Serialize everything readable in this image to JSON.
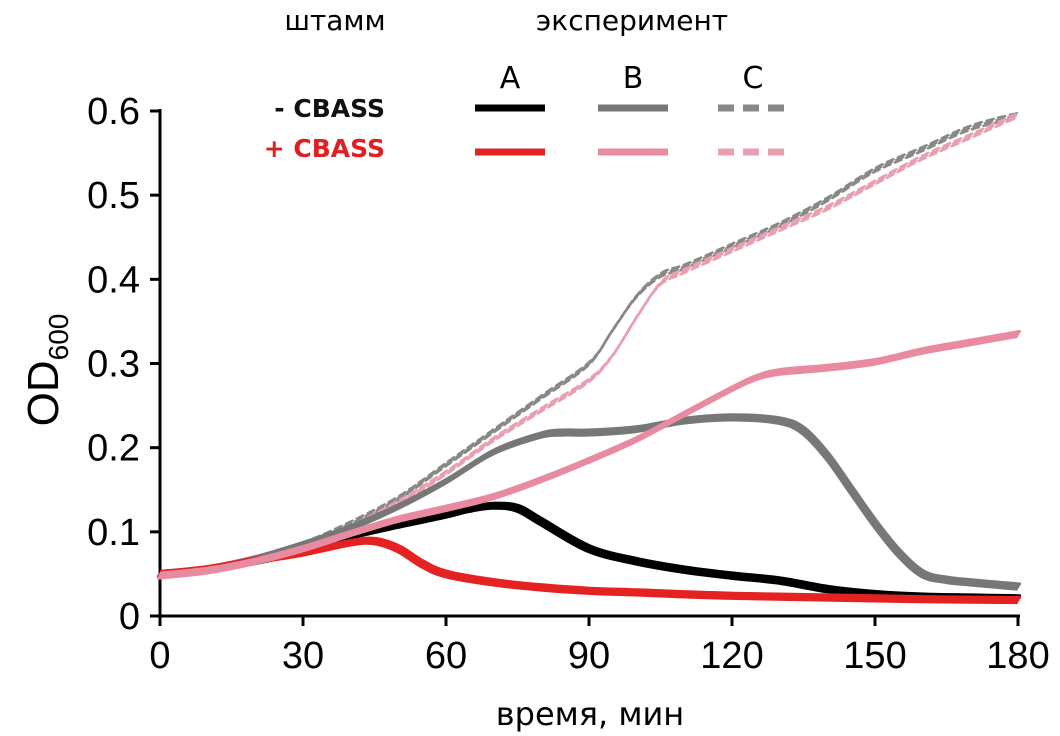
{
  "chart_data": {
    "type": "line",
    "ylabel_main": "OD",
    "ylabel_sub": "600",
    "xlabel": "время, мин",
    "xlim": [
      0,
      180
    ],
    "ylim": [
      0,
      0.6
    ],
    "xticks": [
      0,
      30,
      60,
      90,
      120,
      150,
      180
    ],
    "yticks": [
      0,
      0.1,
      0.2,
      0.3,
      0.4,
      0.5,
      0.6
    ],
    "xtick_labels": [
      "0",
      "30",
      "60",
      "90",
      "120",
      "150",
      "180"
    ],
    "ytick_labels": [
      "0",
      "0.1",
      "0.2",
      "0.3",
      "0.4",
      "0.5",
      "0.6"
    ],
    "legend": {
      "strain_header": "штамм",
      "experiment_header": "эксперимент",
      "columns": [
        "A",
        "B",
        "C"
      ],
      "rows": [
        {
          "label": "- CBASS",
          "color": "#111111"
        },
        {
          "label": "+ CBASS",
          "color": "#e02020"
        }
      ]
    },
    "series": [
      {
        "strain": "- CBASS",
        "experiment": "A",
        "color": "#000000",
        "style": "solid",
        "x": [
          0,
          10,
          20,
          30,
          40,
          50,
          60,
          65,
          70,
          75,
          80,
          90,
          100,
          110,
          120,
          130,
          140,
          150,
          160,
          170,
          180
        ],
        "y": [
          0.05,
          0.055,
          0.065,
          0.078,
          0.095,
          0.108,
          0.12,
          0.127,
          0.131,
          0.128,
          0.112,
          0.08,
          0.065,
          0.055,
          0.048,
          0.042,
          0.032,
          0.026,
          0.023,
          0.022,
          0.021
        ]
      },
      {
        "strain": "- CBASS",
        "experiment": "B",
        "color": "#777777",
        "style": "solid",
        "x": [
          0,
          10,
          20,
          30,
          40,
          50,
          60,
          70,
          80,
          85,
          90,
          100,
          110,
          120,
          130,
          135,
          140,
          145,
          150,
          155,
          160,
          165,
          170,
          180
        ],
        "y": [
          0.05,
          0.056,
          0.068,
          0.085,
          0.105,
          0.13,
          0.16,
          0.195,
          0.215,
          0.218,
          0.218,
          0.222,
          0.232,
          0.236,
          0.232,
          0.22,
          0.19,
          0.15,
          0.11,
          0.075,
          0.05,
          0.043,
          0.04,
          0.035
        ]
      },
      {
        "strain": "- CBASS",
        "experiment": "C",
        "color": "#888888",
        "style": "dashed",
        "x": [
          0,
          10,
          20,
          30,
          40,
          50,
          60,
          70,
          80,
          90,
          95,
          100,
          105,
          110,
          120,
          130,
          140,
          150,
          160,
          170,
          180
        ],
        "y": [
          0.05,
          0.055,
          0.068,
          0.085,
          0.11,
          0.14,
          0.18,
          0.22,
          0.26,
          0.3,
          0.34,
          0.38,
          0.405,
          0.415,
          0.44,
          0.465,
          0.495,
          0.53,
          0.555,
          0.58,
          0.595
        ]
      },
      {
        "strain": "+ CBASS",
        "experiment": "A",
        "color": "#e52222",
        "style": "solid",
        "x": [
          0,
          10,
          20,
          30,
          40,
          45,
          50,
          55,
          60,
          70,
          80,
          90,
          100,
          120,
          140,
          160,
          180
        ],
        "y": [
          0.05,
          0.056,
          0.066,
          0.075,
          0.087,
          0.089,
          0.08,
          0.062,
          0.05,
          0.04,
          0.034,
          0.03,
          0.028,
          0.024,
          0.022,
          0.02,
          0.019
        ]
      },
      {
        "strain": "+ CBASS",
        "experiment": "B",
        "color": "#e88aa0",
        "style": "solid",
        "x": [
          0,
          10,
          20,
          30,
          40,
          50,
          60,
          70,
          80,
          90,
          100,
          110,
          120,
          125,
          130,
          140,
          150,
          160,
          170,
          180
        ],
        "y": [
          0.048,
          0.054,
          0.065,
          0.08,
          0.098,
          0.115,
          0.128,
          0.142,
          0.162,
          0.185,
          0.21,
          0.24,
          0.27,
          0.283,
          0.29,
          0.295,
          0.302,
          0.315,
          0.325,
          0.335
        ]
      },
      {
        "strain": "+ CBASS",
        "experiment": "C",
        "color": "#e8a0b0",
        "style": "dashed",
        "x": [
          0,
          10,
          20,
          30,
          40,
          50,
          60,
          70,
          80,
          90,
          95,
          100,
          105,
          110,
          120,
          130,
          140,
          150,
          160,
          170,
          180
        ],
        "y": [
          0.048,
          0.054,
          0.066,
          0.082,
          0.105,
          0.135,
          0.17,
          0.21,
          0.245,
          0.28,
          0.31,
          0.355,
          0.395,
          0.41,
          0.435,
          0.46,
          0.485,
          0.515,
          0.545,
          0.57,
          0.595
        ]
      }
    ]
  }
}
